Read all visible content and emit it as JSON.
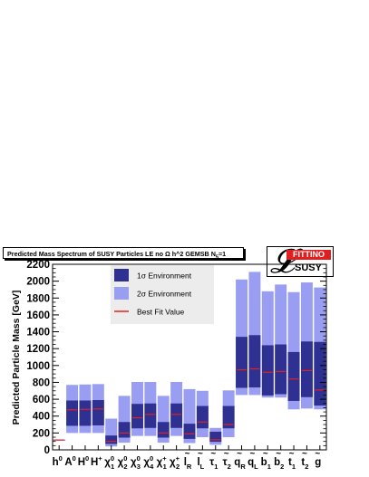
{
  "title": "Predicted Mass Spectrum of SUSY Particles LE no Ω h^2 GEMSB N",
  "title_sub": "5",
  "title_tail": "=1",
  "logo": {
    "top_word": "FITTINO",
    "bottom_word": "SUSY",
    "glyph": "L"
  },
  "chart_data": {
    "type": "bar",
    "ylabel": "Predicted Particle Mass [GeV]",
    "ylim": [
      0,
      2200
    ],
    "yticks": [
      0,
      200,
      400,
      600,
      800,
      1000,
      1200,
      1400,
      1600,
      1800,
      2000,
      2200
    ],
    "legend": {
      "placement": "top-center",
      "entries": [
        {
          "label": "1σ Environment",
          "color": "#2e3191",
          "kind": "box"
        },
        {
          "label": "2σ Environment",
          "color": "#9a9ef2",
          "kind": "box"
        },
        {
          "label": "Best Fit Value",
          "color": "#e8201c",
          "kind": "line"
        }
      ]
    },
    "colors": {
      "one_sigma": "#2e3191",
      "two_sigma": "#9a9ef2",
      "best_fit": "#e8201c",
      "frame": "#000000"
    },
    "categories": [
      {
        "base": "h",
        "sup": "0",
        "sub": "",
        "tilde": false
      },
      {
        "base": "A",
        "sup": "0",
        "sub": "",
        "tilde": false
      },
      {
        "base": "H",
        "sup": "0",
        "sub": "",
        "tilde": false
      },
      {
        "base": "H",
        "sup": "+",
        "sub": "",
        "tilde": false
      },
      {
        "base": "χ",
        "sup": "0",
        "sub": "1",
        "tilde": false
      },
      {
        "base": "χ",
        "sup": "0",
        "sub": "2",
        "tilde": false
      },
      {
        "base": "χ",
        "sup": "0",
        "sub": "3",
        "tilde": false
      },
      {
        "base": "χ",
        "sup": "0",
        "sub": "4",
        "tilde": false
      },
      {
        "base": "χ",
        "sup": "+",
        "sub": "1",
        "tilde": false
      },
      {
        "base": "χ",
        "sup": "+",
        "sub": "2",
        "tilde": false
      },
      {
        "base": "l",
        "sup": "",
        "sub": "R",
        "tilde": true
      },
      {
        "base": "l",
        "sup": "",
        "sub": "L",
        "tilde": true
      },
      {
        "base": "τ",
        "sup": "",
        "sub": "1",
        "tilde": true
      },
      {
        "base": "τ",
        "sup": "",
        "sub": "2",
        "tilde": true
      },
      {
        "base": "q",
        "sup": "",
        "sub": "R",
        "tilde": true
      },
      {
        "base": "q",
        "sup": "",
        "sub": "L",
        "tilde": true
      },
      {
        "base": "b",
        "sup": "",
        "sub": "1",
        "tilde": true
      },
      {
        "base": "b",
        "sup": "",
        "sub": "2",
        "tilde": true
      },
      {
        "base": "t",
        "sup": "",
        "sub": "1",
        "tilde": true
      },
      {
        "base": "t",
        "sup": "",
        "sub": "2",
        "tilde": true
      },
      {
        "base": "g",
        "sup": "",
        "sub": "",
        "tilde": true
      }
    ],
    "two_sigma": [
      [
        110,
        122
      ],
      [
        200,
        770
      ],
      [
        200,
        775
      ],
      [
        200,
        780
      ],
      [
        40,
        370
      ],
      [
        85,
        640
      ],
      [
        165,
        805
      ],
      [
        165,
        805
      ],
      [
        85,
        640
      ],
      [
        165,
        805
      ],
      [
        80,
        720
      ],
      [
        150,
        700
      ],
      [
        60,
        260
      ],
      [
        150,
        705
      ],
      [
        650,
        2020
      ],
      [
        650,
        2110
      ],
      [
        620,
        1880
      ],
      [
        620,
        1960
      ],
      [
        480,
        1870
      ],
      [
        490,
        1985
      ],
      [
        480,
        1925
      ]
    ],
    "one_sigma": [
      [
        112,
        120
      ],
      [
        285,
        585
      ],
      [
        285,
        585
      ],
      [
        290,
        590
      ],
      [
        70,
        170
      ],
      [
        145,
        330
      ],
      [
        255,
        545
      ],
      [
        260,
        550
      ],
      [
        145,
        330
      ],
      [
        260,
        550
      ],
      [
        130,
        310
      ],
      [
        255,
        520
      ],
      [
        95,
        215
      ],
      [
        255,
        520
      ],
      [
        735,
        1340
      ],
      [
        740,
        1360
      ],
      [
        645,
        1240
      ],
      [
        660,
        1250
      ],
      [
        580,
        1160
      ],
      [
        625,
        1285
      ],
      [
        525,
        1280
      ]
    ],
    "best_fit": [
      117,
      475,
      480,
      485,
      100,
      200,
      380,
      420,
      200,
      420,
      190,
      330,
      120,
      300,
      950,
      960,
      920,
      930,
      840,
      940,
      710
    ]
  }
}
